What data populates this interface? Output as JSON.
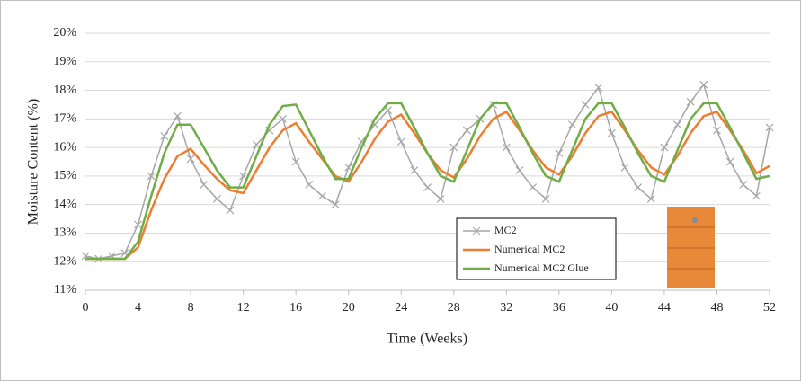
{
  "chart_data": {
    "type": "line",
    "x_label": "Time (Weeks)",
    "y_label": "Moisture Content (%)",
    "x": [
      0,
      1,
      2,
      3,
      4,
      5,
      6,
      7,
      8,
      9,
      10,
      11,
      12,
      13,
      14,
      15,
      16,
      17,
      18,
      19,
      20,
      21,
      22,
      23,
      24,
      25,
      26,
      27,
      28,
      29,
      30,
      31,
      32,
      33,
      34,
      35,
      36,
      37,
      38,
      39,
      40,
      41,
      42,
      43,
      44,
      45,
      46,
      47,
      48,
      49,
      50,
      51,
      52
    ],
    "xlim": [
      0,
      52
    ],
    "xticks": [
      0,
      4,
      8,
      12,
      16,
      20,
      24,
      28,
      32,
      36,
      40,
      44,
      48,
      52
    ],
    "ylim": [
      11,
      20
    ],
    "yticks": [
      {
        "value": 11,
        "label": "11%"
      },
      {
        "value": 12,
        "label": "12%"
      },
      {
        "value": 13,
        "label": "13%"
      },
      {
        "value": 14,
        "label": "14%"
      },
      {
        "value": 15,
        "label": "15%"
      },
      {
        "value": 16,
        "label": "16%"
      },
      {
        "value": 17,
        "label": "17%"
      },
      {
        "value": 18,
        "label": "18%"
      },
      {
        "value": 19,
        "label": "19%"
      },
      {
        "value": 20,
        "label": "20%"
      }
    ],
    "grid": true,
    "series": [
      {
        "name": "MC2",
        "color": "#a6a6a6",
        "marker": "x",
        "values": [
          12.2,
          12.1,
          12.2,
          12.3,
          13.3,
          15.0,
          16.4,
          17.1,
          15.6,
          14.7,
          14.2,
          13.8,
          15.0,
          16.1,
          16.6,
          17.0,
          15.5,
          14.7,
          14.3,
          14.0,
          15.3,
          16.2,
          16.8,
          17.3,
          16.2,
          15.2,
          14.6,
          14.2,
          16.0,
          16.6,
          17.0,
          17.5,
          16.0,
          15.2,
          14.6,
          14.2,
          15.8,
          16.8,
          17.5,
          18.1,
          16.5,
          15.3,
          14.6,
          14.2,
          16.0,
          16.8,
          17.6,
          18.2,
          16.6,
          15.5,
          14.7,
          14.3,
          16.7
        ]
      },
      {
        "name": "Numerical MC2",
        "color": "#ed7d31",
        "values": [
          12.1,
          12.1,
          12.1,
          12.1,
          12.5,
          13.8,
          14.9,
          15.7,
          15.95,
          15.4,
          14.9,
          14.5,
          14.4,
          15.2,
          16.0,
          16.6,
          16.85,
          16.2,
          15.6,
          15.0,
          14.8,
          15.5,
          16.3,
          16.9,
          17.15,
          16.5,
          15.8,
          15.2,
          14.95,
          15.6,
          16.4,
          17.0,
          17.25,
          16.6,
          15.9,
          15.3,
          15.05,
          15.7,
          16.5,
          17.1,
          17.25,
          16.6,
          15.9,
          15.3,
          15.05,
          15.7,
          16.5,
          17.1,
          17.25,
          16.6,
          15.9,
          15.1,
          15.35
        ]
      },
      {
        "name": "Numerical MC2 Glue",
        "color": "#70ad47",
        "values": [
          12.1,
          12.1,
          12.1,
          12.1,
          12.7,
          14.3,
          15.8,
          16.8,
          16.8,
          16.0,
          15.2,
          14.6,
          14.6,
          15.7,
          16.8,
          17.45,
          17.5,
          16.6,
          15.7,
          14.9,
          14.9,
          16.0,
          17.0,
          17.55,
          17.55,
          16.7,
          15.8,
          15.0,
          14.8,
          15.9,
          17.0,
          17.55,
          17.55,
          16.7,
          15.8,
          15.0,
          14.8,
          15.9,
          17.0,
          17.55,
          17.55,
          16.7,
          15.8,
          15.0,
          14.8,
          15.9,
          17.0,
          17.55,
          17.55,
          16.7,
          15.8,
          14.9,
          15.0
        ]
      }
    ]
  }
}
